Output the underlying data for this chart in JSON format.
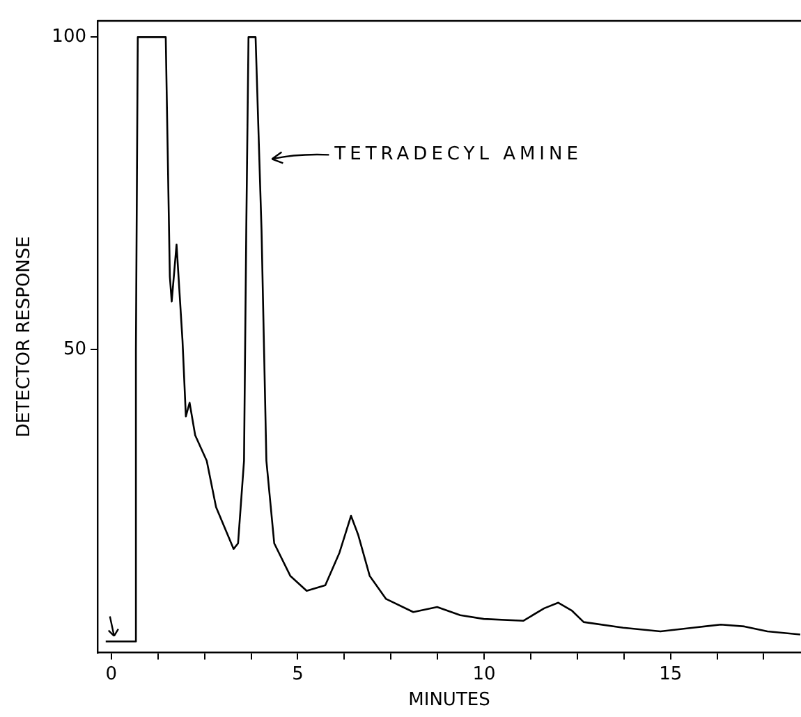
{
  "chart_data": {
    "type": "line",
    "xlabel": "MINUTES",
    "ylabel": "DETECTOR RESPONSE",
    "color": "#000000",
    "marker": "none",
    "line_style": "solid",
    "grid": false,
    "x": [
      -0.15,
      0.66,
      0.66,
      0.71,
      1.46,
      1.57,
      1.62,
      1.75,
      1.91,
      2.0,
      2.1,
      2.25,
      2.56,
      2.81,
      3.28,
      3.4,
      3.56,
      3.62,
      3.68,
      3.87,
      4.03,
      4.16,
      4.37,
      4.8,
      5.24,
      5.74,
      6.12,
      6.43,
      6.62,
      6.93,
      7.37,
      8.1,
      8.74,
      9.36,
      9.99,
      11.05,
      11.61,
      11.99,
      12.36,
      12.67,
      13.73,
      14.73,
      15.6,
      16.35,
      16.98,
      17.6,
      18.48
    ],
    "values": [
      3.3,
      3.3,
      50,
      100,
      100,
      61.7,
      57.7,
      66.8,
      51.4,
      39.3,
      41.5,
      36.3,
      32.2,
      24.8,
      18.1,
      19,
      32.2,
      69,
      100,
      100,
      69,
      32.2,
      19,
      13.8,
      11.4,
      12.3,
      17.5,
      23.4,
      20.4,
      13.8,
      10.1,
      8,
      8.8,
      7.5,
      6.9,
      6.6,
      8.6,
      9.5,
      8.2,
      6.4,
      5.5,
      4.9,
      5.5,
      6,
      5.7,
      4.9,
      4.4
    ],
    "xlim": [
      -0.37,
      18.5
    ],
    "ylim": [
      1.5,
      102.6
    ],
    "xticks": [
      0,
      {
        "value": 1.25,
        "label": null
      },
      {
        "value": 2.5,
        "label": null
      },
      {
        "value": 3.75,
        "label": null
      },
      5,
      {
        "value": 6.25,
        "label": null
      },
      {
        "value": 7.5,
        "label": null
      },
      {
        "value": 8.75,
        "label": null
      },
      10,
      {
        "value": 11.25,
        "label": null
      },
      {
        "value": 12.5,
        "label": null
      },
      {
        "value": 13.75,
        "label": null
      },
      15,
      {
        "value": 16.25,
        "label": null
      },
      {
        "value": 17.5,
        "label": null
      }
    ],
    "yticks": [
      50,
      100
    ],
    "annotations": [
      "TETRADECYL AMINE"
    ]
  }
}
